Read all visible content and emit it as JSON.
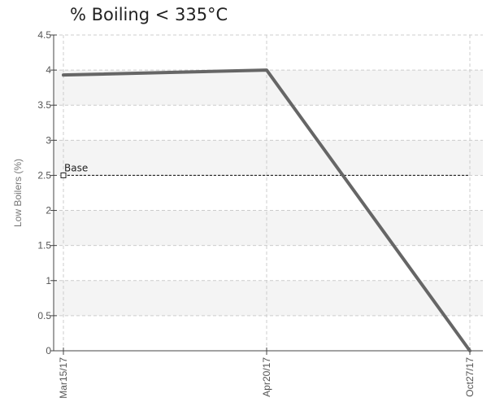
{
  "chart_data": {
    "type": "line",
    "title": "% Boiling < 335°C",
    "xlabel": "",
    "ylabel": "Low Boilers (%)",
    "categories": [
      "Mar15/17",
      "Apr20/17",
      "Oct27/17"
    ],
    "series": [
      {
        "values": [
          3.93,
          4.0,
          0.0
        ],
        "color": "#666666"
      }
    ],
    "reference_line": {
      "label": "Base",
      "value": 2.5,
      "color": "#222222"
    },
    "ylim": [
      0,
      4.5
    ],
    "yticks": [
      0,
      0.5,
      1,
      1.5,
      2,
      2.5,
      3,
      3.5,
      4,
      4.5
    ],
    "ytick_labels": [
      "0",
      "0.5",
      "1",
      "1.5",
      "2",
      "2.5",
      "3",
      "3.5",
      "4",
      "4.5"
    ],
    "grid": true,
    "band_color": "#f4f4f4",
    "grid_color": "#cccccc",
    "axis_color": "#444444"
  }
}
